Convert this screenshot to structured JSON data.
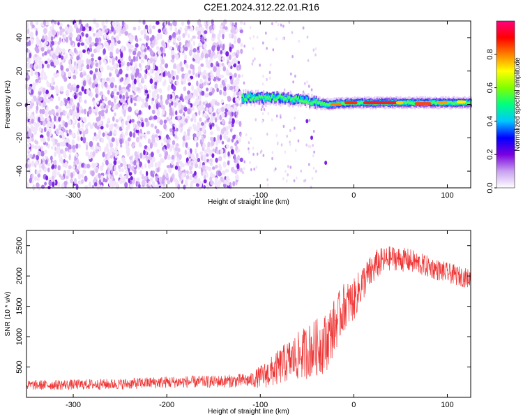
{
  "title": "C2E1.2024.312.22.01.R16",
  "chart_data": [
    {
      "type": "heatmap",
      "xlabel": "Height of straight line (km)",
      "ylabel": "Frequency (Hz)",
      "xlim": [
        -350,
        125
      ],
      "ylim": [
        -50,
        50
      ],
      "x_ticks": [
        -300,
        -200,
        -100,
        0,
        100
      ],
      "y_ticks": [
        -40,
        -20,
        0,
        20,
        40
      ],
      "colorbar": {
        "label": "Normalized spectral amplitude",
        "range": [
          0,
          1
        ],
        "ticks": [
          "0.0",
          "0.2",
          "0.4",
          "0.6",
          "0.8"
        ],
        "stops": [
          "#ffffff",
          "#c8a0f0",
          "#7a00e0",
          "#0000ff",
          "#00c8ff",
          "#00ff80",
          "#80ff00",
          "#ffff00",
          "#ff8000",
          "#ff0000",
          "#ff0080"
        ]
      },
      "features": {
        "noise_region_x": [
          -350,
          -120
        ],
        "signal_start_x": -120,
        "signal_freq_hz": [
          4,
          4,
          3,
          0,
          1,
          1,
          1,
          1
        ],
        "signal_x": [
          -120,
          -90,
          -60,
          -30,
          0,
          40,
          80,
          125
        ],
        "branch_points": [
          [
            -50,
            -10
          ],
          [
            -45,
            -20
          ],
          [
            -30,
            -35
          ]
        ]
      }
    },
    {
      "type": "line",
      "xlabel": "Height of straight line (km)",
      "ylabel": "SNR (10 * v/v)",
      "xlim": [
        -350,
        125
      ],
      "ylim": [
        0,
        2750
      ],
      "x_ticks": [
        -300,
        -200,
        -100,
        0,
        100
      ],
      "y_ticks": [
        500,
        1000,
        1500,
        2000,
        2500
      ],
      "line_color": "#ee3333",
      "envelope": {
        "x": [
          -350,
          -250,
          -200,
          -150,
          -110,
          -90,
          -70,
          -50,
          -30,
          -20,
          -10,
          0,
          10,
          25,
          40,
          60,
          80,
          100,
          125
        ],
        "mean": [
          200,
          220,
          250,
          260,
          280,
          400,
          600,
          750,
          900,
          1200,
          1500,
          1600,
          1900,
          2200,
          2300,
          2250,
          2150,
          2050,
          1950
        ],
        "amplitude": [
          80,
          90,
          100,
          100,
          120,
          250,
          350,
          450,
          500,
          450,
          400,
          350,
          300,
          250,
          200,
          200,
          180,
          170,
          160
        ]
      }
    }
  ]
}
